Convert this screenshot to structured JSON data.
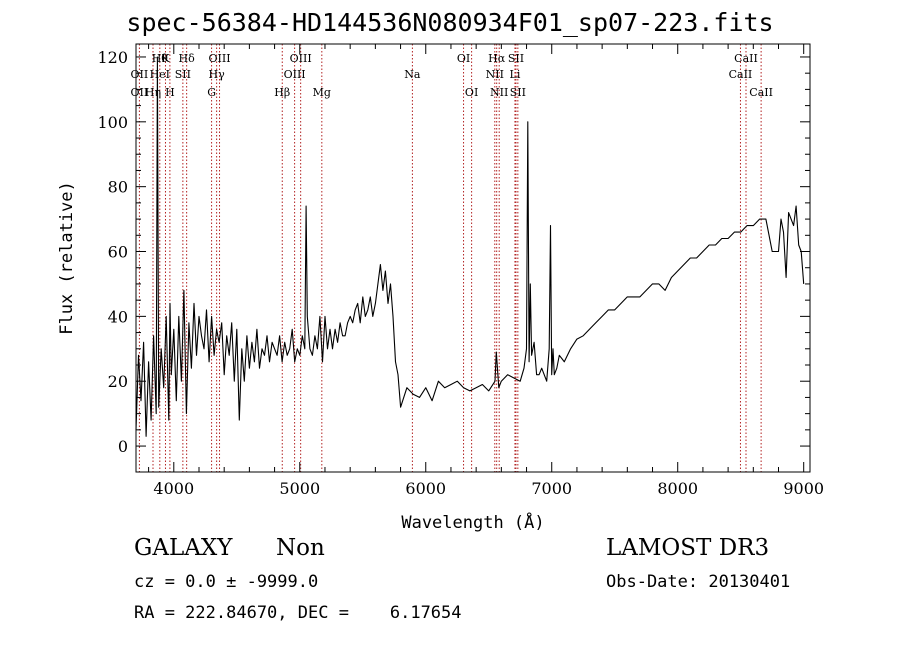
{
  "header": {
    "title": "spec-56384-HD144536N080934F01_sp07-223.fits"
  },
  "info": {
    "object_class": "GALAXY",
    "subclass": "Non",
    "survey": "LAMOST DR3",
    "redshift_line": "cz = 0.0 ± -9999.0",
    "obs_date_line": "Obs-Date: 20130401",
    "coords_line": "RA = 222.84670, DEC =    6.17654"
  },
  "chart_data": {
    "type": "line",
    "xlabel": "Wavelength (Å)",
    "ylabel": "Flux (relative)",
    "xlim": [
      3700,
      9050
    ],
    "ylim": [
      -8,
      124
    ],
    "x_ticks": [
      4000,
      5000,
      6000,
      7000,
      8000,
      9000
    ],
    "y_ticks": [
      0,
      20,
      40,
      60,
      80,
      100,
      120
    ],
    "line_color": "#000000",
    "marker_color": "#b22222",
    "series": [
      {
        "x": [
          3700,
          3720,
          3740,
          3760,
          3780,
          3800,
          3820,
          3840,
          3860,
          3870,
          3880,
          3900,
          3920,
          3940,
          3960,
          3970,
          3980,
          4000,
          4020,
          4040,
          4060,
          4080,
          4100,
          4120,
          4140,
          4160,
          4180,
          4200,
          4220,
          4240,
          4260,
          4280,
          4300,
          4320,
          4340,
          4360,
          4380,
          4400,
          4420,
          4440,
          4460,
          4480,
          4500,
          4520,
          4540,
          4560,
          4580,
          4600,
          4620,
          4640,
          4660,
          4680,
          4700,
          4720,
          4740,
          4760,
          4780,
          4800,
          4820,
          4840,
          4860,
          4880,
          4900,
          4920,
          4940,
          4960,
          4980,
          5000,
          5020,
          5040,
          5050,
          5060,
          5080,
          5100,
          5120,
          5140,
          5160,
          5180,
          5200,
          5220,
          5240,
          5260,
          5280,
          5300,
          5320,
          5340,
          5360,
          5380,
          5400,
          5420,
          5440,
          5460,
          5480,
          5500,
          5520,
          5540,
          5560,
          5580,
          5600,
          5620,
          5640,
          5660,
          5680,
          5700,
          5720,
          5740,
          5760,
          5780,
          5800,
          5850,
          5900,
          5950,
          6000,
          6050,
          6100,
          6150,
          6200,
          6250,
          6300,
          6350,
          6400,
          6450,
          6500,
          6550,
          6560,
          6580,
          6600,
          6650,
          6700,
          6750,
          6780,
          6800,
          6810,
          6820,
          6830,
          6840,
          6860,
          6880,
          6900,
          6920,
          6940,
          6960,
          6980,
          6990,
          7000,
          7010,
          7020,
          7040,
          7060,
          7080,
          7100,
          7150,
          7200,
          7250,
          7300,
          7350,
          7400,
          7450,
          7500,
          7550,
          7600,
          7650,
          7700,
          7750,
          7800,
          7850,
          7900,
          7950,
          8000,
          8050,
          8100,
          8150,
          8200,
          8250,
          8300,
          8350,
          8400,
          8450,
          8500,
          8550,
          8600,
          8650,
          8700,
          8750,
          8800,
          8820,
          8840,
          8860,
          8880,
          8900,
          8920,
          8940,
          8960,
          8980,
          9000
        ],
        "y": [
          5,
          28,
          14,
          32,
          3,
          26,
          8,
          34,
          10,
          120,
          12,
          30,
          18,
          40,
          8,
          44,
          22,
          36,
          14,
          40,
          20,
          48,
          10,
          38,
          24,
          44,
          28,
          40,
          34,
          30,
          42,
          26,
          40,
          28,
          36,
          32,
          38,
          22,
          34,
          28,
          38,
          20,
          36,
          8,
          30,
          20,
          34,
          24,
          32,
          26,
          36,
          24,
          30,
          28,
          34,
          26,
          32,
          30,
          28,
          34,
          26,
          32,
          28,
          30,
          36,
          26,
          30,
          28,
          34,
          30,
          74,
          40,
          30,
          28,
          34,
          30,
          40,
          26,
          40,
          30,
          36,
          30,
          36,
          32,
          38,
          34,
          34,
          38,
          40,
          38,
          42,
          44,
          38,
          46,
          40,
          42,
          46,
          40,
          44,
          50,
          56,
          48,
          54,
          44,
          50,
          40,
          26,
          22,
          12,
          18,
          16,
          15,
          18,
          14,
          20,
          18,
          19,
          20,
          18,
          17,
          18,
          19,
          17,
          20,
          29,
          18,
          20,
          22,
          21,
          20,
          24,
          30,
          100,
          26,
          50,
          28,
          32,
          22,
          22,
          24,
          22,
          20,
          30,
          68,
          22,
          30,
          22,
          24,
          28,
          27,
          26,
          30,
          33,
          34,
          36,
          38,
          40,
          42,
          42,
          44,
          46,
          46,
          46,
          48,
          50,
          50,
          48,
          52,
          54,
          56,
          58,
          58,
          60,
          62,
          62,
          64,
          64,
          66,
          66,
          68,
          68,
          70,
          70,
          60,
          60,
          70,
          66,
          52,
          72,
          70,
          68,
          74,
          62,
          60,
          50
        ]
      }
    ],
    "lines": [
      {
        "wl": 3727,
        "label": "OII",
        "row": 2
      },
      {
        "wl": 3727,
        "label": "OII",
        "row": 1
      },
      {
        "wl": 3835,
        "label": "Hη",
        "row": 2
      },
      {
        "wl": 3889,
        "label": "Hθ",
        "row": 0
      },
      {
        "wl": 3889,
        "label": "HeI",
        "row": 1
      },
      {
        "wl": 3934,
        "label": "K",
        "row": 0
      },
      {
        "wl": 3969,
        "label": "H",
        "row": 2
      },
      {
        "wl": 4072,
        "label": "SII",
        "row": 1
      },
      {
        "wl": 4102,
        "label": "Hδ",
        "row": 0
      },
      {
        "wl": 4300,
        "label": "G",
        "row": 2
      },
      {
        "wl": 4340,
        "label": "Hγ",
        "row": 1
      },
      {
        "wl": 4363,
        "label": "OIII",
        "row": 0
      },
      {
        "wl": 4861,
        "label": "Hβ",
        "row": 2
      },
      {
        "wl": 4959,
        "label": "OIII",
        "row": 1
      },
      {
        "wl": 5007,
        "label": "OIII",
        "row": 0
      },
      {
        "wl": 5175,
        "label": "Mg",
        "row": 2
      },
      {
        "wl": 5894,
        "label": "Na",
        "row": 1
      },
      {
        "wl": 6300,
        "label": "OI",
        "row": 0
      },
      {
        "wl": 6364,
        "label": "OI",
        "row": 2
      },
      {
        "wl": 6548,
        "label": "NII",
        "row": 1
      },
      {
        "wl": 6563,
        "label": "Hα",
        "row": 0
      },
      {
        "wl": 6583,
        "label": "NII",
        "row": 2
      },
      {
        "wl": 6708,
        "label": "Li",
        "row": 1
      },
      {
        "wl": 6716,
        "label": "SII",
        "row": 0
      },
      {
        "wl": 6731,
        "label": "SII",
        "row": 2
      },
      {
        "wl": 8498,
        "label": "CaII",
        "row": 1
      },
      {
        "wl": 8542,
        "label": "CaII",
        "row": 0
      },
      {
        "wl": 8662,
        "label": "CaII",
        "row": 2
      }
    ]
  }
}
